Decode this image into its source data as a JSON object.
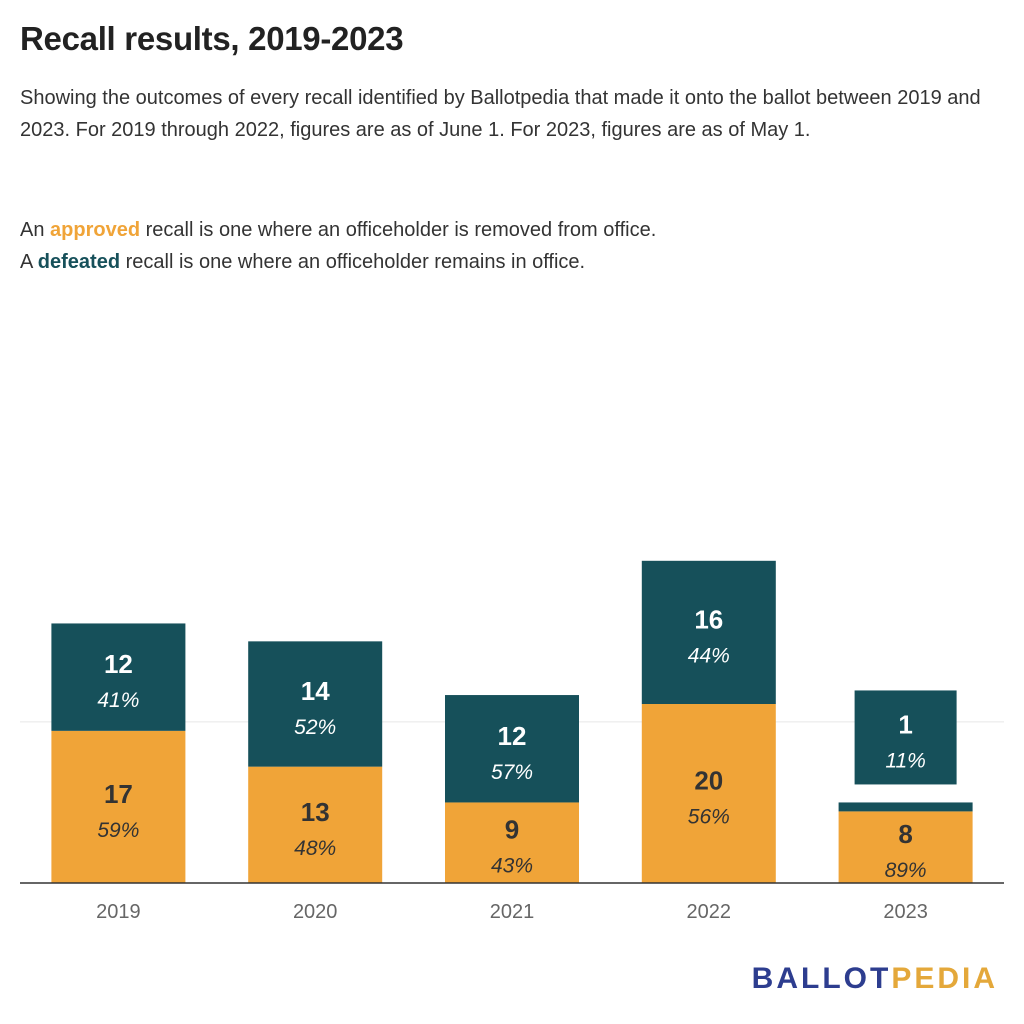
{
  "title": "Recall results, 2019-2023",
  "subtitle": "Showing the outcomes of every recall identified by Ballotpedia that made it onto the ballot between 2019 and 2023. For 2019 through 2022, figures are as of June 1. For 2023, figures are as of May 1.",
  "notes": {
    "approved_prefix": "An ",
    "approved_word": "approved",
    "approved_suffix": " recall is one where an officeholder is removed from office.",
    "defeated_prefix": "A ",
    "defeated_word": "defeated",
    "defeated_suffix": " recall is one where an officeholder remains in office."
  },
  "logo": {
    "part1": "BALLOT",
    "part2": "PEDIA"
  },
  "colors": {
    "approved": "#f0a438",
    "defeated": "#16505a",
    "label_on_dark": "#ffffff",
    "label_on_light": "#333333",
    "axis": "#333333",
    "grid": "#e6e6e6",
    "tick": "#666666"
  },
  "chart_data": {
    "type": "bar",
    "stacked": true,
    "categories": [
      "2019",
      "2020",
      "2021",
      "2022",
      "2023"
    ],
    "series": [
      {
        "name": "approved",
        "values": [
          17,
          13,
          9,
          20,
          8
        ],
        "labels": [
          "59%",
          "48%",
          "43%",
          "56%",
          "89%"
        ]
      },
      {
        "name": "defeated",
        "values": [
          12,
          14,
          12,
          16,
          1
        ],
        "labels": [
          "41%",
          "52%",
          "57%",
          "44%",
          "11%"
        ]
      }
    ],
    "ylim": [
      0,
      36
    ],
    "grid": true,
    "xlabel": "",
    "ylabel": ""
  }
}
